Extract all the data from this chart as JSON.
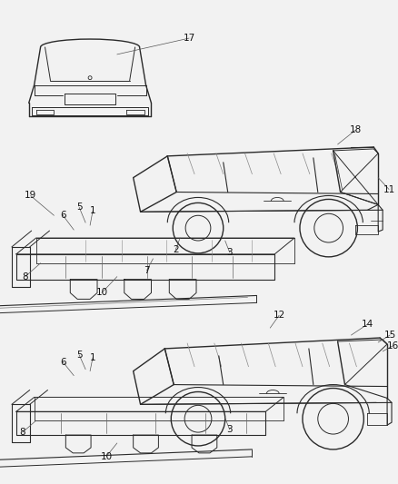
{
  "bg_color": "#f0f0f0",
  "line_color": "#2a2a2a",
  "label_color": "#111111",
  "label_fontsize": 7.5,
  "fig_width": 4.38,
  "fig_height": 5.33,
  "dpi": 100
}
